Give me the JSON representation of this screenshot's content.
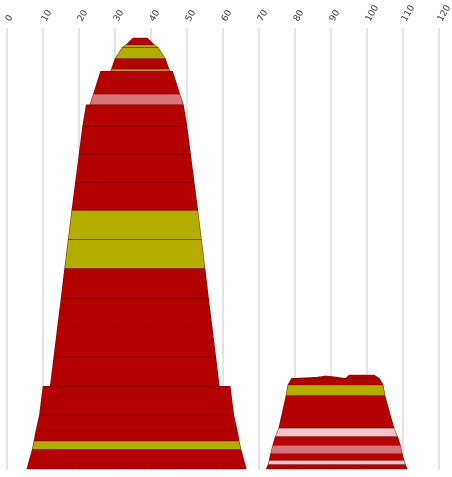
{
  "chart_data": {
    "type": "area",
    "title": "",
    "xlabel": "",
    "ylabel": "",
    "grid": true,
    "xlim": [
      0,
      120
    ],
    "x_ticks": [
      "0",
      "10",
      "20",
      "30",
      "40",
      "50",
      "60",
      "70",
      "80",
      "90",
      "100",
      "110",
      "120"
    ],
    "colors": {
      "red": "#b30000",
      "olive": "#b3ad00",
      "pink": "#d9747a",
      "light_pink": "#f0c4c6",
      "grid": "#c8c8c8"
    },
    "shapes": [
      {
        "name": "left-stack",
        "bands": [
          {
            "top": 100.0,
            "bottom": 98.4,
            "left_top": 35.0,
            "right_top": 39.0,
            "left_bottom": 33.0,
            "right_bottom": 41.0,
            "color": "red"
          },
          {
            "top": 98.4,
            "bottom": 97.8,
            "left_top": 33.0,
            "right_top": 41.0,
            "left_bottom": 32.0,
            "right_bottom": 42.0,
            "color": "olive"
          },
          {
            "top": 97.8,
            "bottom": 95.2,
            "left_top": 32.0,
            "right_top": 42.0,
            "left_bottom": 30.0,
            "right_bottom": 44.0,
            "color": "olive"
          },
          {
            "top": 95.2,
            "bottom": 92.8,
            "left_top": 30.0,
            "right_top": 44.0,
            "left_bottom": 29.0,
            "right_bottom": 45.0,
            "color": "red"
          },
          {
            "top": 92.8,
            "bottom": 92.3,
            "left_top": 29.0,
            "right_top": 45.0,
            "left_bottom": 28.8,
            "right_bottom": 45.3,
            "color": "olive"
          },
          {
            "top": 92.3,
            "bottom": 87.0,
            "left_top": 26.0,
            "right_top": 46.0,
            "left_bottom": 24.0,
            "right_bottom": 48.0,
            "color": "red"
          },
          {
            "top": 87.0,
            "bottom": 84.5,
            "left_top": 24.0,
            "right_top": 48.0,
            "left_bottom": 23.0,
            "right_bottom": 49.0,
            "color": "pink"
          },
          {
            "top": 84.5,
            "bottom": 79.5,
            "left_top": 22.0,
            "right_top": 49.0,
            "left_bottom": 21.0,
            "right_bottom": 50.0,
            "color": "red"
          },
          {
            "top": 79.5,
            "bottom": 73.0,
            "left_top": 21.0,
            "right_top": 50.0,
            "left_bottom": 20.0,
            "right_bottom": 51.0,
            "color": "red"
          },
          {
            "top": 73.0,
            "bottom": 66.5,
            "left_top": 20.0,
            "right_top": 51.0,
            "left_bottom": 19.0,
            "right_bottom": 52.0,
            "color": "red"
          },
          {
            "top": 66.5,
            "bottom": 60.0,
            "left_top": 19.0,
            "right_top": 52.0,
            "left_bottom": 18.0,
            "right_bottom": 53.0,
            "color": "red"
          },
          {
            "top": 60.0,
            "bottom": 53.2,
            "left_top": 18.0,
            "right_top": 53.0,
            "left_bottom": 17.0,
            "right_bottom": 54.0,
            "color": "olive"
          },
          {
            "top": 53.2,
            "bottom": 46.5,
            "left_top": 17.0,
            "right_top": 54.0,
            "left_bottom": 16.0,
            "right_bottom": 55.0,
            "color": "olive"
          },
          {
            "top": 46.5,
            "bottom": 39.5,
            "left_top": 16.0,
            "right_top": 55.0,
            "left_bottom": 15.0,
            "right_bottom": 56.0,
            "color": "red"
          },
          {
            "top": 39.5,
            "bottom": 32.8,
            "left_top": 15.0,
            "right_top": 56.0,
            "left_bottom": 14.0,
            "right_bottom": 57.0,
            "color": "red"
          },
          {
            "top": 32.8,
            "bottom": 26.0,
            "left_top": 14.0,
            "right_top": 57.0,
            "left_bottom": 13.0,
            "right_bottom": 58.0,
            "color": "red"
          },
          {
            "top": 26.0,
            "bottom": 19.2,
            "left_top": 13.0,
            "right_top": 58.0,
            "left_bottom": 12.0,
            "right_bottom": 59.0,
            "color": "red"
          },
          {
            "top": 19.2,
            "bottom": 12.5,
            "left_top": 10.0,
            "right_top": 62.0,
            "left_bottom": 9.0,
            "right_bottom": 63.0,
            "color": "red"
          },
          {
            "top": 12.5,
            "bottom": 8.8,
            "left_top": 9.0,
            "right_top": 63.0,
            "left_bottom": 8.0,
            "right_bottom": 64.0,
            "color": "red"
          },
          {
            "top": 8.8,
            "bottom": 6.5,
            "left_top": 8.0,
            "right_top": 64.0,
            "left_bottom": 7.5,
            "right_bottom": 64.5,
            "color": "red"
          },
          {
            "top": 6.5,
            "bottom": 4.5,
            "left_top": 7.5,
            "right_top": 64.5,
            "left_bottom": 7.0,
            "right_bottom": 65.0,
            "color": "olive"
          },
          {
            "top": 4.5,
            "bottom": 0.0,
            "left_top": 7.0,
            "right_top": 65.0,
            "left_bottom": 5.5,
            "right_bottom": 66.5,
            "color": "red"
          }
        ]
      },
      {
        "name": "right-stack",
        "bands": [
          {
            "top": 21.0,
            "bottom": 19.5,
            "left_top": 79.0,
            "right_top": 103.5,
            "left_bottom": 78.0,
            "right_bottom": 104.5,
            "color": "red"
          },
          {
            "top": 19.5,
            "bottom": 17.0,
            "left_top": 78.0,
            "right_top": 104.5,
            "left_bottom": 77.5,
            "right_bottom": 105.0,
            "color": "olive"
          },
          {
            "top": 17.0,
            "bottom": 9.5,
            "left_top": 77.5,
            "right_top": 105.0,
            "left_bottom": 75.5,
            "right_bottom": 107.5,
            "color": "red"
          },
          {
            "top": 9.5,
            "bottom": 7.5,
            "left_top": 75.5,
            "right_top": 107.5,
            "left_bottom": 74.5,
            "right_bottom": 108.5,
            "color": "light_pink"
          },
          {
            "top": 7.5,
            "bottom": 5.5,
            "left_top": 74.5,
            "right_top": 108.5,
            "left_bottom": 73.8,
            "right_bottom": 109.3,
            "color": "red"
          },
          {
            "top": 5.5,
            "bottom": 3.5,
            "left_top": 73.8,
            "right_top": 109.3,
            "left_bottom": 73.2,
            "right_bottom": 109.8,
            "color": "pink"
          },
          {
            "top": 3.5,
            "bottom": 2.0,
            "left_top": 73.2,
            "right_top": 109.8,
            "left_bottom": 72.8,
            "right_bottom": 110.3,
            "color": "red"
          },
          {
            "top": 2.0,
            "bottom": 1.0,
            "left_top": 72.8,
            "right_top": 110.3,
            "left_bottom": 72.5,
            "right_bottom": 110.7,
            "color": "light_pink"
          },
          {
            "top": 1.0,
            "bottom": 0.0,
            "left_top": 72.5,
            "right_top": 110.7,
            "left_bottom": 72.0,
            "right_bottom": 111.2,
            "color": "red"
          }
        ],
        "cap": [
          {
            "x": 79.0,
            "y": 21.0
          },
          {
            "x": 86.0,
            "y": 21.3
          },
          {
            "x": 88.5,
            "y": 21.6
          },
          {
            "x": 91.0,
            "y": 21.4
          },
          {
            "x": 94.0,
            "y": 21.0
          },
          {
            "x": 95.0,
            "y": 21.8
          },
          {
            "x": 102.0,
            "y": 21.8
          },
          {
            "x": 103.5,
            "y": 21.0
          }
        ]
      }
    ]
  }
}
